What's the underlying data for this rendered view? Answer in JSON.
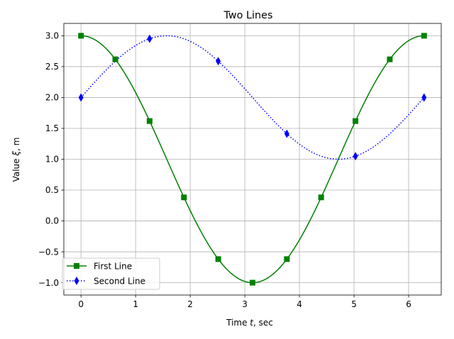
{
  "chart_data": {
    "type": "line",
    "title": "Two Lines",
    "xlabel": "Time t, sec",
    "ylabel": "Value ξ, m",
    "xlim": [
      -0.3142,
      6.5973
    ],
    "ylim": [
      -1.2,
      3.2
    ],
    "xticks": [
      0,
      1,
      2,
      3,
      4,
      5,
      6
    ],
    "xtick_labels": [
      "0",
      "1",
      "2",
      "3",
      "4",
      "5",
      "6"
    ],
    "yticks": [
      -1.0,
      -0.5,
      0.0,
      0.5,
      1.0,
      1.5,
      2.0,
      2.5,
      3.0
    ],
    "ytick_labels": [
      "−1.0",
      "−0.5",
      "0.0",
      "0.5",
      "1.0",
      "1.5",
      "2.0",
      "2.5",
      "3.0"
    ],
    "grid": true,
    "legend_position": "lower-left",
    "series": [
      {
        "name": "First Line",
        "color": "#008000",
        "line_style": "solid",
        "marker": "square",
        "function": "1 + 2*cos(t)",
        "x": [
          0,
          0.6283,
          1.2566,
          1.885,
          2.5133,
          3.1416,
          3.7699,
          4.3982,
          5.0265,
          5.6549,
          6.2832
        ],
        "values": [
          3.0,
          2.618,
          1.618,
          0.382,
          -0.618,
          -1.0,
          -0.618,
          0.382,
          1.618,
          2.618,
          3.0
        ]
      },
      {
        "name": "Second Line",
        "color": "#0000ff",
        "line_style": "dotted",
        "marker": "diamond",
        "function": "2 + sin(t)",
        "x": [
          0,
          1.2566,
          2.5133,
          3.7699,
          5.0265,
          6.2832
        ],
        "values": [
          2.0,
          2.951,
          2.588,
          1.412,
          1.049,
          2.0
        ]
      }
    ]
  }
}
